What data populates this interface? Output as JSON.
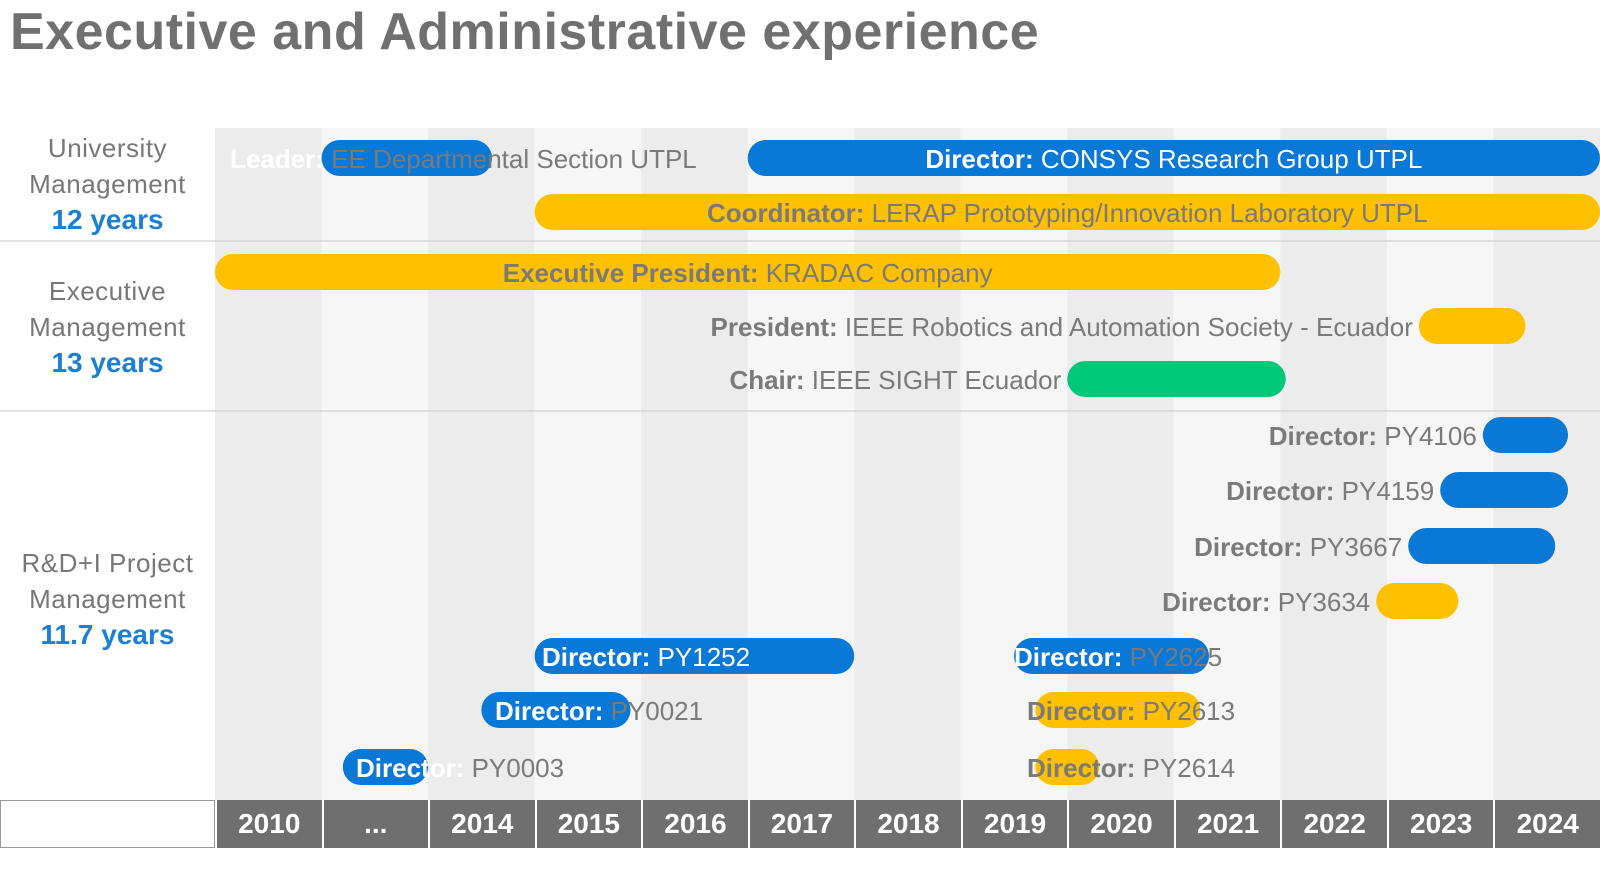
{
  "title": "Executive and Administrative experience",
  "colors": {
    "blue": "#0a78d6",
    "yellow": "#ffc000",
    "green": "#00c878",
    "text_gray": "#777777",
    "accent_blue": "#1b7fd4",
    "axis_bg": "#6f6f6f"
  },
  "chart_data": {
    "type": "gantt",
    "x_axis": {
      "tick_labels": [
        "2010",
        "...",
        "2014",
        "2015",
        "2016",
        "2017",
        "2018",
        "2019",
        "2020",
        "2021",
        "2022",
        "2023",
        "2024"
      ]
    },
    "sections": [
      {
        "name_line1": "University",
        "name_line2": "Management",
        "duration": "12 years"
      },
      {
        "name_line1": "Executive",
        "name_line2": "Management",
        "duration": "13 years"
      },
      {
        "name_line1": "R&D+I Project",
        "name_line2": "Management",
        "duration": "11.7 years"
      }
    ],
    "bars": [
      {
        "role": "Leader:",
        "name": "EE Departmental Section UTPL",
        "start": 1.0,
        "end": 2.6,
        "color": "blue",
        "section": 0
      },
      {
        "role": "Director:",
        "name": "CONSYS Research Group UTPL",
        "start": 5.0,
        "end": 13.0,
        "color": "blue",
        "section": 0
      },
      {
        "role": "Coordinator:",
        "name": "LERAP Prototyping/Innovation Laboratory UTPL",
        "start": 3.0,
        "end": 13.0,
        "color": "yellow",
        "section": 0
      },
      {
        "role": "Executive President:",
        "name": "KRADAC Company",
        "start": 0.0,
        "end": 10.0,
        "color": "yellow",
        "section": 1
      },
      {
        "role": "President:",
        "name": "IEEE Robotics and Automation Society - Ecuador",
        "start": 11.3,
        "end": 12.3,
        "color": "yellow",
        "section": 1
      },
      {
        "role": "Chair:",
        "name": "IEEE SIGHT Ecuador",
        "start": 8.0,
        "end": 10.05,
        "color": "green",
        "section": 1
      },
      {
        "role": "Director:",
        "name": "PY4106",
        "start": 11.9,
        "end": 12.7,
        "color": "blue",
        "section": 2
      },
      {
        "role": "Director:",
        "name": "PY4159",
        "start": 11.5,
        "end": 12.7,
        "color": "blue",
        "section": 2
      },
      {
        "role": "Director:",
        "name": "PY3667",
        "start": 11.2,
        "end": 12.58,
        "color": "blue",
        "section": 2
      },
      {
        "role": "Director:",
        "name": "PY3634",
        "start": 10.9,
        "end": 11.67,
        "color": "yellow",
        "section": 2
      },
      {
        "role": "Director:",
        "name": "PY1252",
        "start": 3.0,
        "end": 6.0,
        "color": "blue",
        "section": 2
      },
      {
        "role": "Director:",
        "name": "PY2625",
        "start": 7.5,
        "end": 9.33,
        "color": "blue",
        "section": 2
      },
      {
        "role": "Director:",
        "name": "PY0021",
        "start": 2.5,
        "end": 3.9,
        "color": "blue",
        "section": 2
      },
      {
        "role": "Director:",
        "name": "PY2613",
        "start": 7.7,
        "end": 9.25,
        "color": "yellow",
        "section": 2
      },
      {
        "role": "Director:",
        "name": "PY0003",
        "start": 1.2,
        "end": 2.0,
        "color": "blue",
        "section": 2
      },
      {
        "role": "Director:",
        "name": "PY2614",
        "start": 7.7,
        "end": 8.3,
        "color": "yellow",
        "section": 2
      }
    ]
  }
}
